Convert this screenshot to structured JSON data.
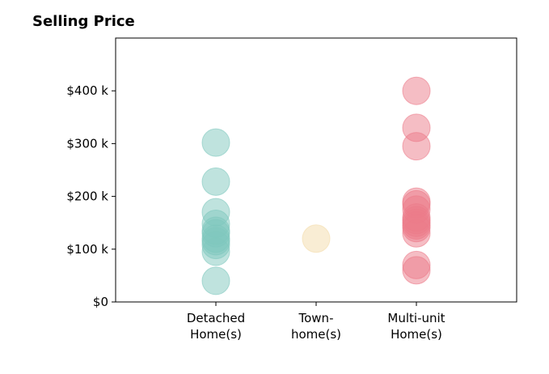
{
  "chart_data": {
    "type": "scatter",
    "title": "Selling Price",
    "xlabel": "",
    "ylabel": "",
    "ylim": [
      0,
      500000
    ],
    "y_ticks": [
      {
        "value": 0,
        "label": "$0"
      },
      {
        "value": 100000,
        "label": "$100 k"
      },
      {
        "value": 200000,
        "label": "$200 k"
      },
      {
        "value": 300000,
        "label": "$300 k"
      },
      {
        "value": 400000,
        "label": "$400 k"
      }
    ],
    "categories": [
      {
        "line1": "Detached",
        "line2": "Home(s)"
      },
      {
        "line1": "Town-",
        "line2": "home(s)"
      },
      {
        "line1": "Multi-unit",
        "line2": "Home(s)"
      }
    ],
    "grid": false,
    "series": [
      {
        "color": "#7fc8be",
        "category_index": 0,
        "values": [
          40000,
          95000,
          108000,
          115000,
          120000,
          130000,
          135000,
          148000,
          170000,
          228000,
          302000
        ]
      },
      {
        "color": "#f4dcaa",
        "category_index": 1,
        "values": [
          120000
        ]
      },
      {
        "color": "#ec7c8a",
        "category_index": 2,
        "values": [
          60000,
          70000,
          130000,
          140000,
          145000,
          150000,
          155000,
          160000,
          175000,
          185000,
          190000,
          295000,
          330000,
          400000
        ]
      }
    ]
  }
}
